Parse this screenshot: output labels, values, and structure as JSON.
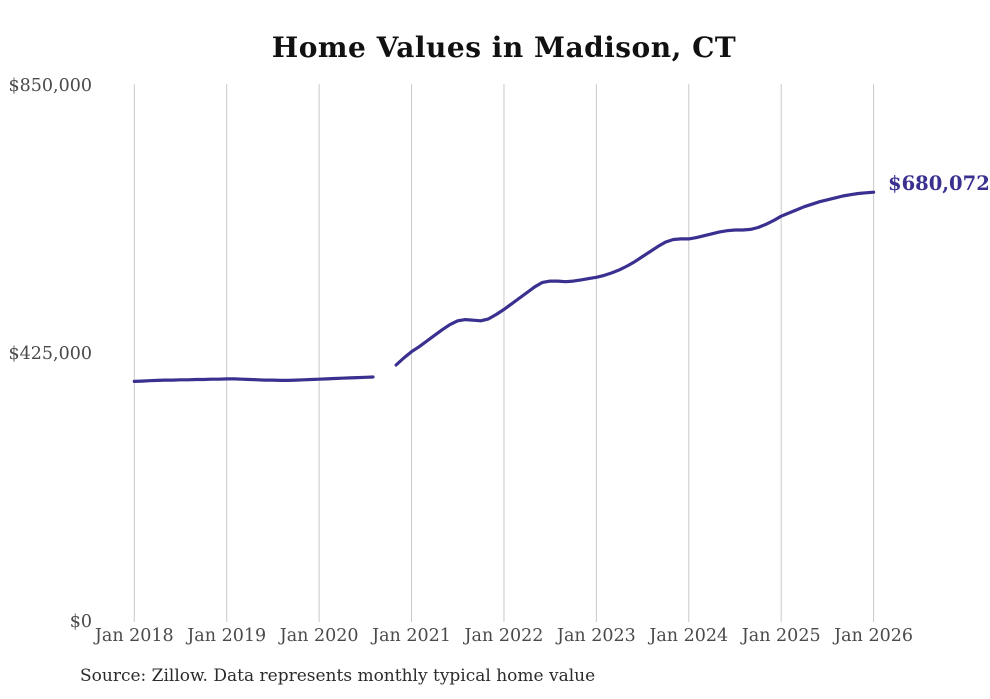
{
  "page": {
    "background_color": "#ffffff"
  },
  "chart_data": {
    "type": "line",
    "title": "Home Values in Madison, CT",
    "source_note": "Source: Zillow. Data represents monthly typical home value",
    "end_label": "$680,072",
    "end_value": 680072,
    "line_color": "#39308f",
    "grid_color": "#c9c9c9",
    "axis_text_color": "#4a4a4a",
    "ylim": [
      0,
      850000
    ],
    "y_ticks": [
      0,
      425000,
      850000
    ],
    "y_tick_labels": [
      "$0",
      "$425,000",
      "$850,000"
    ],
    "x_tick_labels": [
      "Jan 2018",
      "Jan 2019",
      "Jan 2020",
      "Jan 2021",
      "Jan 2022",
      "Jan 2023",
      "Jan 2024",
      "Jan 2025",
      "Jan 2026"
    ],
    "x_unit": "month",
    "x_start": "2018-01",
    "x_end": "2026-01",
    "gap_months": [
      "2020-09",
      "2020-10"
    ],
    "legend": "none",
    "grid": "vertical-only",
    "monthly_values": [
      380000,
      380500,
      381000,
      381500,
      382000,
      382000,
      382500,
      382500,
      383000,
      383000,
      383500,
      383500,
      384000,
      384000,
      383500,
      383000,
      382500,
      382000,
      382000,
      381500,
      381500,
      382000,
      382500,
      383000,
      383500,
      384000,
      384500,
      385000,
      385500,
      386000,
      386500,
      387000,
      null,
      null,
      406000,
      417000,
      427000,
      435000,
      444000,
      453000,
      462000,
      470000,
      476000,
      478000,
      477000,
      476000,
      479000,
      486000,
      494000,
      503000,
      512000,
      521000,
      530000,
      537000,
      539000,
      539000,
      538000,
      539000,
      541000,
      543000,
      545000,
      548000,
      552000,
      557000,
      563000,
      570000,
      578000,
      586000,
      594000,
      601000,
      605000,
      606000,
      606000,
      608000,
      611000,
      614000,
      617000,
      619000,
      620000,
      620000,
      621000,
      624000,
      629000,
      635000,
      642000,
      647000,
      652000,
      657000,
      661000,
      665000,
      668000,
      671000,
      674000,
      676000,
      678000,
      679000,
      680072
    ]
  }
}
